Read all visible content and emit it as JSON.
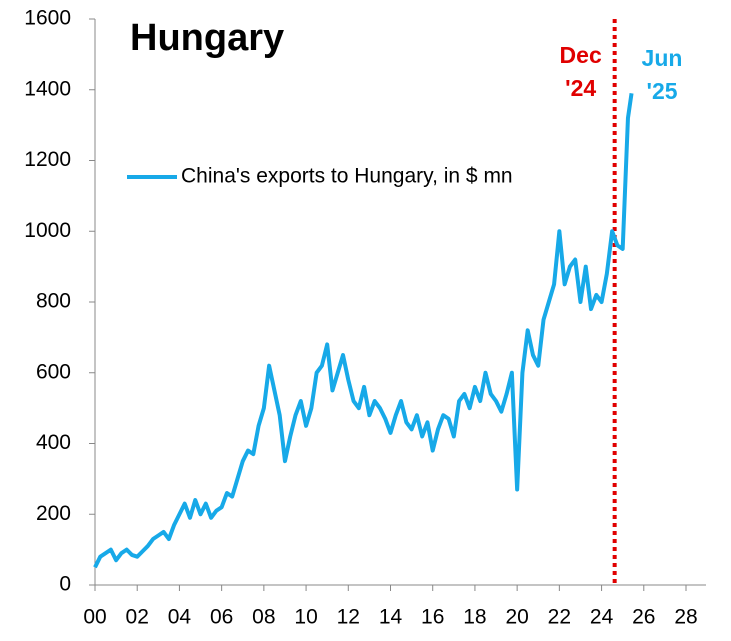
{
  "chart_data": {
    "type": "line",
    "title": "Hungary",
    "x": [
      2000,
      2000.25,
      2000.5,
      2000.75,
      2001,
      2001.25,
      2001.5,
      2001.75,
      2002,
      2002.25,
      2002.5,
      2002.75,
      2003,
      2003.25,
      2003.5,
      2003.75,
      2004,
      2004.25,
      2004.5,
      2004.75,
      2005,
      2005.25,
      2005.5,
      2005.75,
      2006,
      2006.25,
      2006.5,
      2006.75,
      2007,
      2007.25,
      2007.5,
      2007.75,
      2008,
      2008.25,
      2008.5,
      2008.75,
      2009,
      2009.25,
      2009.5,
      2009.75,
      2010,
      2010.25,
      2010.5,
      2010.75,
      2011,
      2011.25,
      2011.5,
      2011.75,
      2012,
      2012.25,
      2012.5,
      2012.75,
      2013,
      2013.25,
      2013.5,
      2013.75,
      2014,
      2014.25,
      2014.5,
      2014.75,
      2015,
      2015.25,
      2015.5,
      2015.75,
      2016,
      2016.25,
      2016.5,
      2016.75,
      2017,
      2017.25,
      2017.5,
      2017.75,
      2018,
      2018.25,
      2018.5,
      2018.75,
      2019,
      2019.25,
      2019.5,
      2019.75,
      2020,
      2020.25,
      2020.5,
      2020.75,
      2021,
      2021.25,
      2021.5,
      2021.75,
      2022,
      2022.25,
      2022.5,
      2022.75,
      2023,
      2023.25,
      2023.5,
      2023.75,
      2024,
      2024.25,
      2024.5,
      2024.75,
      2025,
      2025.25,
      2025.42
    ],
    "series": [
      {
        "name": "China's exports to Hungary, in $ mn",
        "color": "#17a9e8",
        "values": [
          50,
          80,
          90,
          100,
          70,
          90,
          100,
          85,
          80,
          95,
          110,
          130,
          140,
          150,
          130,
          170,
          200,
          230,
          190,
          240,
          200,
          230,
          190,
          210,
          220,
          260,
          250,
          300,
          350,
          380,
          370,
          450,
          500,
          620,
          550,
          480,
          350,
          420,
          480,
          520,
          450,
          500,
          600,
          620,
          680,
          550,
          600,
          650,
          580,
          520,
          500,
          560,
          480,
          520,
          500,
          470,
          430,
          480,
          520,
          460,
          440,
          480,
          420,
          460,
          380,
          440,
          480,
          470,
          420,
          520,
          540,
          500,
          560,
          520,
          600,
          540,
          520,
          490,
          540,
          600,
          270,
          600,
          720,
          650,
          620,
          750,
          800,
          850,
          1000,
          850,
          900,
          920,
          800,
          900,
          780,
          820,
          800,
          880,
          1000,
          960,
          950,
          1320,
          1390
        ]
      }
    ],
    "xlim": [
      2000,
      2028
    ],
    "ylim": [
      0,
      1600
    ],
    "xticks": [
      {
        "value": 2000,
        "label": "00"
      },
      {
        "value": 2002,
        "label": "02"
      },
      {
        "value": 2004,
        "label": "04"
      },
      {
        "value": 2006,
        "label": "06"
      },
      {
        "value": 2008,
        "label": "08"
      },
      {
        "value": 2010,
        "label": "10"
      },
      {
        "value": 2012,
        "label": "12"
      },
      {
        "value": 2014,
        "label": "14"
      },
      {
        "value": 2016,
        "label": "16"
      },
      {
        "value": 2018,
        "label": "18"
      },
      {
        "value": 2020,
        "label": "20"
      },
      {
        "value": 2022,
        "label": "22"
      },
      {
        "value": 2024,
        "label": "24"
      },
      {
        "value": 2026,
        "label": "26"
      },
      {
        "value": 2028,
        "label": "28"
      }
    ],
    "yticks": [
      0,
      200,
      400,
      600,
      800,
      1000,
      1200,
      1400,
      1600
    ],
    "marker_line": {
      "x": 2024.62,
      "color": "#e00000",
      "label_lines": [
        "Dec",
        "'24"
      ]
    },
    "end_label_lines": [
      "Jun",
      "'25"
    ]
  }
}
